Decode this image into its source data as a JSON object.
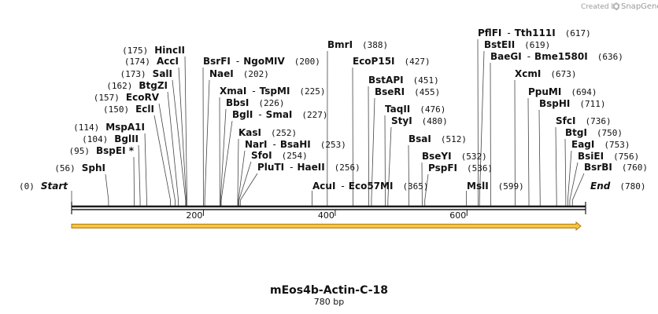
{
  "branding": {
    "created_by": "Created by",
    "brand": "SnapGene"
  },
  "sequence": {
    "name": "mEos4b-Actin-C-18",
    "length_label": "780 bp",
    "length_bp": 780
  },
  "axis": {
    "ticks": [
      200,
      400,
      600
    ]
  },
  "feature": {
    "name": "orf-arrow",
    "start_bp": 1,
    "end_bp": 780,
    "color": "#f5c542",
    "outline": "#b07a12"
  },
  "sites": [
    {
      "pos": "(0)",
      "name": "Start",
      "bp": 0,
      "kind": "end"
    },
    {
      "pos": "(56)",
      "name": "SphI",
      "bp": 56
    },
    {
      "pos": "(95)",
      "name": "BspEI *",
      "bp": 95
    },
    {
      "pos": "(104)",
      "name": "BglII",
      "bp": 104
    },
    {
      "pos": "(114)",
      "name": "MspA1I",
      "bp": 114
    },
    {
      "pos": "(150)",
      "name": "EclI",
      "bp": 150
    },
    {
      "pos": "(157)",
      "name": "EcoRV",
      "bp": 157
    },
    {
      "pos": "(162)",
      "name": "BtgZI",
      "bp": 162
    },
    {
      "pos": "(173)",
      "name": "SalI",
      "bp": 173
    },
    {
      "pos": "(174)",
      "name": "AccI",
      "bp": 174
    },
    {
      "pos": "(175)",
      "name": "HincII",
      "bp": 175
    },
    {
      "pos": "(200)",
      "name": "BsrFI",
      "name2": "NgoMIV",
      "bp": 200
    },
    {
      "pos": "(202)",
      "name": "NaeI",
      "bp": 202
    },
    {
      "pos": "(225)",
      "name": "XmaI",
      "name2": "TspMI",
      "bp": 225
    },
    {
      "pos": "(226)",
      "name": "BbsI",
      "bp": 226
    },
    {
      "pos": "(227)",
      "name": "BglI",
      "name2": "SmaI",
      "bp": 227
    },
    {
      "pos": "(252)",
      "name": "KasI",
      "bp": 252
    },
    {
      "pos": "(253)",
      "name": "NarI",
      "name2": "BsaHI",
      "bp": 253
    },
    {
      "pos": "(254)",
      "name": "SfoI",
      "bp": 254
    },
    {
      "pos": "(256)",
      "name": "PluTI",
      "name2": "HaeII",
      "bp": 256
    },
    {
      "pos": "(365)",
      "name": "AcuI",
      "name2": "Eco57MI",
      "bp": 365
    },
    {
      "pos": "(388)",
      "name": "BmrI",
      "bp": 388
    },
    {
      "pos": "(427)",
      "name": "EcoP15I",
      "bp": 427
    },
    {
      "pos": "(451)",
      "name": "BstAPI",
      "bp": 451
    },
    {
      "pos": "(455)",
      "name": "BseRI",
      "bp": 455
    },
    {
      "pos": "(476)",
      "name": "TaqII",
      "bp": 476
    },
    {
      "pos": "(480)",
      "name": "StyI",
      "bp": 480
    },
    {
      "pos": "(512)",
      "name": "BsaI",
      "bp": 512
    },
    {
      "pos": "(532)",
      "name": "BseYI",
      "bp": 532
    },
    {
      "pos": "(536)",
      "name": "PspFI",
      "bp": 536
    },
    {
      "pos": "(599)",
      "name": "MslI",
      "bp": 599
    },
    {
      "pos": "(617)",
      "name": "PflFI",
      "name2": "Tth111I",
      "bp": 617
    },
    {
      "pos": "(619)",
      "name": "BstEII",
      "bp": 619
    },
    {
      "pos": "(636)",
      "name": "BaeGI",
      "name2": "Bme1580I",
      "bp": 636
    },
    {
      "pos": "(673)",
      "name": "XcmI",
      "bp": 673
    },
    {
      "pos": "(694)",
      "name": "PpuMI",
      "bp": 694
    },
    {
      "pos": "(711)",
      "name": "BspHI",
      "bp": 711
    },
    {
      "pos": "(736)",
      "name": "SfcI",
      "bp": 736
    },
    {
      "pos": "(750)",
      "name": "BtgI",
      "bp": 750
    },
    {
      "pos": "(753)",
      "name": "EagI",
      "bp": 753
    },
    {
      "pos": "(756)",
      "name": "BsiEI",
      "bp": 756
    },
    {
      "pos": "(760)",
      "name": "BsrBI",
      "bp": 760
    },
    {
      "pos": "(780)",
      "name": "End",
      "bp": 780,
      "kind": "end"
    }
  ]
}
